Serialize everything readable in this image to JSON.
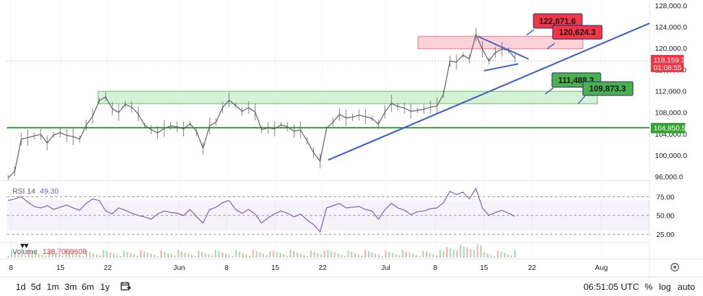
{
  "chart_data": {
    "type": "candlestick",
    "timeframes": [
      "1d",
      "5d",
      "1m",
      "3m",
      "6m",
      "1y"
    ],
    "clock": "06:51:05 UTC",
    "scale_options": [
      "%",
      "log",
      "auto"
    ],
    "x_ticks": [
      "8",
      "15",
      "22",
      "Jun",
      "8",
      "15",
      "22",
      "Jul",
      "8",
      "15",
      "22",
      "Aug"
    ],
    "price_axis": {
      "ticks": [
        "128,000.0",
        "124,000.0",
        "120,000.0",
        "116,000.0",
        "112,000.0",
        "108,000.0",
        "104,000.0",
        "100,000.0",
        "96,000.0"
      ],
      "ylim": [
        95000,
        129000
      ],
      "current_price": "118,159.3",
      "countdown": "01:08:55",
      "support_level": "104,850.5"
    },
    "price_series": {
      "note": "approx closes, one per ~2 days, May 1 - Jul 18",
      "values": [
        95800,
        97000,
        103000,
        103300,
        103600,
        103900,
        102300,
        103800,
        104200,
        103700,
        103500,
        103000,
        105600,
        107300,
        110200,
        110900,
        108700,
        108000,
        109500,
        109000,
        107700,
        105600,
        104800,
        104200,
        105000,
        105500,
        105300,
        104900,
        105900,
        104400,
        101300,
        105500,
        106200,
        108900,
        110300,
        109300,
        108200,
        108900,
        108100,
        104800,
        105100,
        104900,
        105700,
        105300,
        104500,
        104700,
        102700,
        100500,
        98900,
        105000,
        106200,
        107600,
        107000,
        107100,
        107500,
        107200,
        106900,
        105800,
        108100,
        109700,
        109100,
        108800,
        108200,
        108400,
        108600,
        109000,
        109200,
        111400,
        117600,
        117400,
        118700,
        118000,
        122600,
        119800,
        117600,
        119200,
        119800,
        119600,
        118159
      ]
    },
    "annotations": {
      "red_zone": {
        "label": "",
        "range": [
          120624.3,
          122871.6
        ]
      },
      "green_zone": {
        "label": "",
        "range": [
          109873.3,
          111488.3
        ]
      },
      "labels": [
        "122,871.6",
        "120,624.3",
        "111,488.3",
        "109,873.3"
      ]
    },
    "rsi": {
      "label": "RSI 14",
      "value": "49.30",
      "levels": [
        "75.00",
        "50.00",
        "25.00"
      ],
      "ylim": [
        15,
        90
      ],
      "band": [
        30,
        70
      ],
      "values": [
        70,
        72,
        75,
        68,
        62,
        60,
        63,
        58,
        61,
        64,
        60,
        57,
        66,
        72,
        70,
        56,
        52,
        60,
        57,
        53,
        50,
        48,
        45,
        52,
        56,
        54,
        53,
        50,
        58,
        48,
        40,
        58,
        61,
        67,
        70,
        58,
        53,
        58,
        52,
        40,
        47,
        52,
        56,
        53,
        48,
        52,
        44,
        38,
        28,
        60,
        63,
        66,
        60,
        61,
        62,
        58,
        56,
        45,
        58,
        66,
        60,
        57,
        51,
        55,
        56,
        59,
        60,
        67,
        82,
        78,
        81,
        72,
        86,
        60,
        50,
        54,
        57,
        53,
        49
      ]
    },
    "volume": {
      "label": "Volume",
      "value": "138.7069608"
    }
  }
}
